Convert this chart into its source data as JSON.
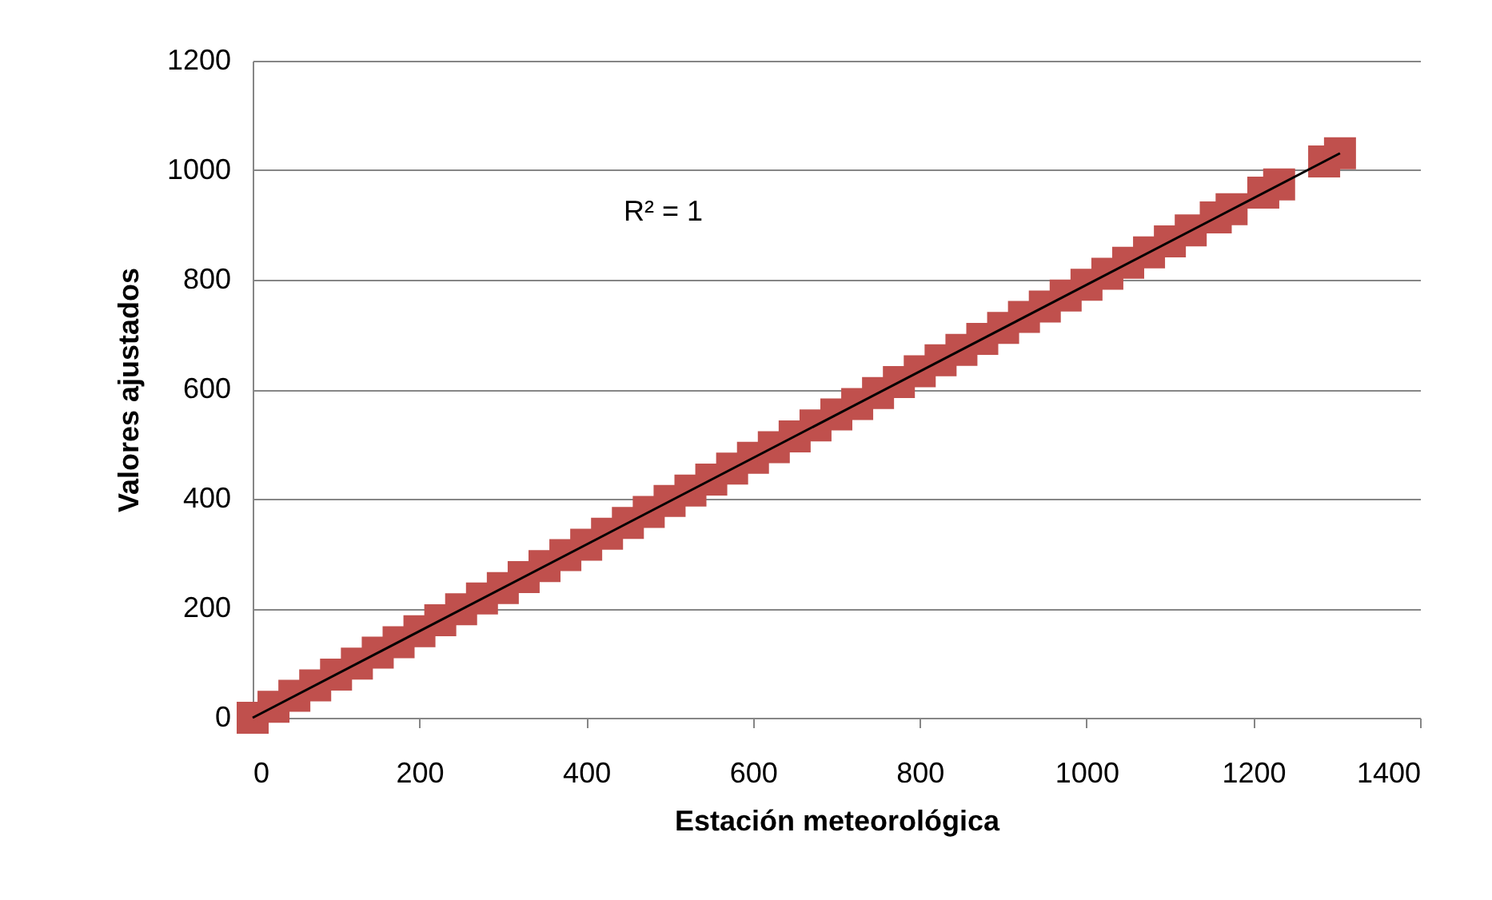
{
  "chart_data": {
    "type": "scatter",
    "xlabel": "Estación meteorológica",
    "ylabel": "Valores ajustados",
    "annotations": [
      "R² = 1"
    ],
    "xlim": [
      0,
      1400
    ],
    "xticks": [
      0,
      200,
      400,
      600,
      800,
      1000,
      1200,
      1400
    ],
    "ylim": [
      0,
      1200
    ],
    "yticks": [
      0,
      200,
      400,
      600,
      800,
      1000,
      1200
    ],
    "grid": "y",
    "legend": false,
    "marker": "square",
    "series": [
      {
        "color": "#c0504d",
        "x": [
          0,
          25,
          50,
          75,
          100,
          125,
          150,
          175,
          200,
          225,
          250,
          275,
          300,
          325,
          350,
          375,
          400,
          425,
          450,
          475,
          500,
          525,
          550,
          575,
          600,
          625,
          650,
          675,
          700,
          725,
          750,
          775,
          800,
          825,
          850,
          875,
          900,
          925,
          950,
          975,
          1000,
          1025,
          1050,
          1075,
          1100,
          1125,
          1155,
          1174,
          1212,
          1231,
          1285,
          1304
        ],
        "values": [
          0,
          20,
          40,
          59,
          79,
          99,
          119,
          138,
          158,
          178,
          198,
          218,
          237,
          257,
          277,
          297,
          316,
          336,
          356,
          376,
          396,
          415,
          435,
          455,
          475,
          494,
          514,
          534,
          554,
          573,
          593,
          613,
          633,
          653,
          672,
          692,
          712,
          732,
          751,
          771,
          791,
          811,
          831,
          850,
          870,
          890,
          914,
          929,
          959,
          974,
          1016,
          1031
        ]
      },
      {
        "type": "line",
        "color": "#000000",
        "x": [
          0,
          1304
        ],
        "values": [
          0,
          1031
        ],
        "marker": "none"
      }
    ]
  }
}
